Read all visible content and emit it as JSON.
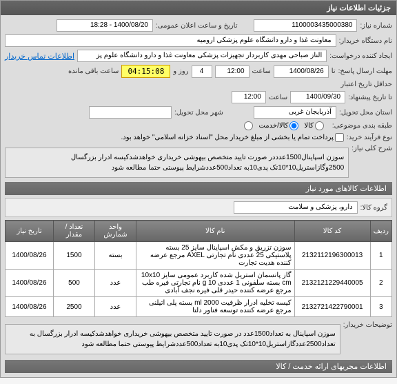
{
  "header": {
    "title": "جزئیات اطلاعات نیاز"
  },
  "fields": {
    "need_number_label": "شماره نیاز:",
    "need_number": "1100003435000380",
    "announce_label": "تاریخ و ساعت اعلان عمومی:",
    "announce_value": "1400/08/20 - 18:28",
    "buyer_unit_label": "نام دستگاه خریدار:",
    "buyer_unit": "معاونت غذا و دارو دانشگاه علوم پزشکی ارومیه",
    "requester_label": "ایجاد کننده درخواست:",
    "requester": "الناز صباحی مهدی کاربردار تجهیزات پزشکی معاونت غذا و دارو دانشگاه علوم پز",
    "contact_link": "اطلاعات تماس خریدار",
    "deadline_label": "مهلت ارسال پاسخ:",
    "deadline_until_label": "تا",
    "deadline_date": "1400/08/26",
    "time_label": "ساعت",
    "deadline_time": "12:00",
    "days_label": "روز و",
    "days_value": "4",
    "countdown": "04:15:08",
    "remaining_label": "ساعت باقی مانده",
    "validity_label": "حداقل تاریخ اعتبار",
    "validity_until_label": "تا تاریخ پیشنهاد:",
    "validity_date": "1400/09/30",
    "validity_time": "12:00",
    "province_label": "استان محل تحویل:",
    "province": "آذربایجان غربی",
    "city_label": "شهر محل تحویل:",
    "city": "",
    "budget_label": "طبقه بندی موضوعی:",
    "budget_opt1": "کالا",
    "budget_opt2": "کالا/خدمت",
    "budget_opt3": "",
    "payment_label": "نوع فرآیند خرید:",
    "payment_note": "پرداخت تمام یا بخشی از مبلغ خریدار محل \"اسناد خزانه اسلامی\" خواهد بود.",
    "desc_label": "شرح کلی نیاز:",
    "desc_text": "سوزن اسپاینال1500عدددر صورت تایید متخصص بیهوشی خریداری خواهدشدکیسه ادرار بزرگسال 2500وگازاستریل10*10تک پدی10به تعداد500عددشرایط پیوستی حتما مطالعه شود"
  },
  "goods": {
    "section_title": "اطلاعات کالاهای مورد نیاز",
    "group_label": "گروه کالا:",
    "group_value": "دارو، پزشکی و سلامت",
    "columns": {
      "row": "ردیف",
      "code": "کد کالا",
      "name": "نام کالا",
      "unit": "واحد شمارش",
      "qty": "تعداد / مقدار",
      "date": "تاریخ نیاز"
    },
    "rows": [
      {
        "n": "1",
        "code": "2132112196300013",
        "name": "سوزن تزریق و مکش اسپاینال سایز 25 بسته پلاستیکی 25 عددی نام تجارتی AXEL مرجع عرضه کننده هدیت تجارت",
        "unit": "بسته",
        "qty": "1500",
        "date": "1400/08/26"
      },
      {
        "n": "2",
        "code": "2132121229440005",
        "name": "گاز پانسمان استریل شده کاربرد عمومی سایز 10x10 cm بسته سلفونی 1 عددی 10 g نام تجارتی فیره طب مرجع عرضه کننده حیدر قلی فیره نجف آبادی",
        "unit": "عدد",
        "qty": "500",
        "date": "1400/08/26"
      },
      {
        "n": "3",
        "code": "2132721422790001",
        "name": "کیسه تخلیه ادرار ظرفیت 2000 ml بسته پلی اتیلنی مرجع عرضه کننده توسعه فناور دلتا",
        "unit": "عدد",
        "qty": "2500",
        "date": "1400/08/26"
      }
    ],
    "buyer_note_label": "توضیحات خریدار:",
    "buyer_note": "سوزن اسپاینال به تعداد1500عدد در صورت تایید متخصص بیهوشی خریداری خواهدشدکیسه ادرار بزرگسال به تعداد2500عددگازاستریل10*10تک پدی10به تعداد500عددشرایط پیوستی حتما مطالعه شود",
    "service_label": "اطلاعات مجریهای ارائه خدمت / کالا"
  }
}
